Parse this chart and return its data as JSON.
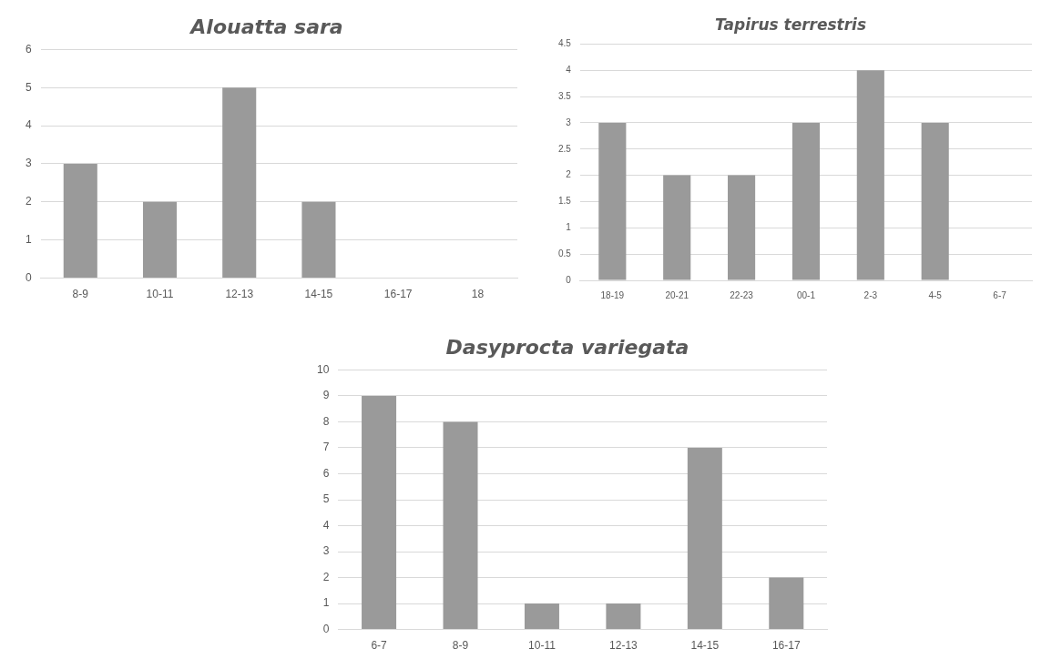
{
  "chart_data": [
    {
      "type": "bar",
      "title": "Alouatta sara",
      "categories": [
        "8-9",
        "10-11",
        "12-13",
        "14-15",
        "16-17",
        "18"
      ],
      "values": [
        3,
        2,
        5,
        2,
        0,
        0
      ],
      "color": "#9a9a9a",
      "ylim": [
        0,
        6
      ],
      "yticks": [
        0,
        1,
        2,
        3,
        4,
        5,
        6
      ],
      "grid": "y",
      "legend": false
    },
    {
      "type": "bar",
      "title": "Tapirus terrestris",
      "categories": [
        "18-19",
        "20-21",
        "22-23",
        "00-1",
        "2-3",
        "4-5",
        "6-7"
      ],
      "values": [
        3,
        2,
        2,
        3,
        4,
        3,
        0
      ],
      "color": "#9a9a9a",
      "ylim": [
        0,
        4.5
      ],
      "yticks": [
        0,
        0.5,
        1,
        1.5,
        2,
        2.5,
        3,
        3.5,
        4,
        4.5
      ],
      "grid": "y",
      "legend": false
    },
    {
      "type": "bar",
      "title": "Dasyprocta variegata",
      "categories": [
        "6-7",
        "8-9",
        "10-11",
        "12-13",
        "14-15",
        "16-17"
      ],
      "values": [
        9,
        8,
        1,
        1,
        7,
        2
      ],
      "color": "#9a9a9a",
      "ylim": [
        0,
        10
      ],
      "yticks": [
        0,
        1,
        2,
        3,
        4,
        5,
        6,
        7,
        8,
        9,
        10
      ],
      "grid": "y",
      "legend": false
    }
  ]
}
